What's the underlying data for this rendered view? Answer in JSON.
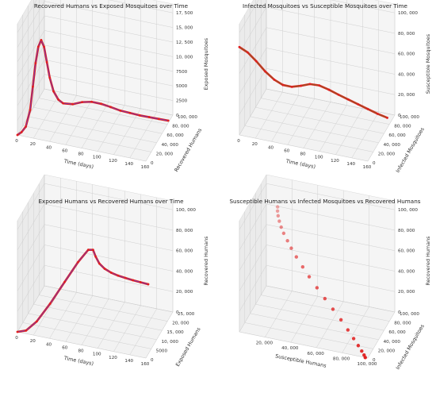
{
  "chart_data": [
    {
      "type": "line3d",
      "title": "Recovered Humans vs Exposed Mosquitoes over Time",
      "xlabel": "Time (days)",
      "ylabel": "Recovered Humans",
      "zlabel": "Exposed Mosquitoes",
      "xticks": [
        "0",
        "20",
        "40",
        "60",
        "80",
        "100",
        "120",
        "140",
        "160"
      ],
      "yticks": [
        "0",
        "20, 000",
        "40, 000",
        "60, 000",
        "80, 000",
        "100, 000"
      ],
      "zticks": [
        "0",
        "2500",
        "5000",
        "7500",
        "10, 000",
        "12, 500",
        "15, 000",
        "17, 500"
      ],
      "xlim": [
        0,
        160
      ],
      "ylim": [
        0,
        100000
      ],
      "zlim": [
        0,
        17500
      ],
      "series": [
        {
          "style": "red-markers-over-purple-line",
          "points": [
            [
              0,
              0,
              0
            ],
            [
              5,
              400,
              600
            ],
            [
              10,
              1200,
              1600
            ],
            [
              15,
              2500,
              4500
            ],
            [
              18,
              3500,
              8500
            ],
            [
              21,
              4600,
              12500
            ],
            [
              24,
              6000,
              15300
            ],
            [
              27,
              7600,
              16400
            ],
            [
              30,
              9300,
              15200
            ],
            [
              33,
              11000,
              12500
            ],
            [
              36,
              12700,
              9800
            ],
            [
              40,
              15000,
              7400
            ],
            [
              45,
              17800,
              5900
            ],
            [
              50,
              20500,
              5200
            ],
            [
              60,
              26000,
              4900
            ],
            [
              70,
              31500,
              5100
            ],
            [
              80,
              37000,
              5000
            ],
            [
              90,
              42500,
              4500
            ],
            [
              100,
              48000,
              3800
            ],
            [
              110,
              54000,
              3000
            ],
            [
              120,
              60000,
              2400
            ],
            [
              130,
              66000,
              1800
            ],
            [
              140,
              72000,
              1300
            ],
            [
              150,
              78000,
              800
            ],
            [
              160,
              83000,
              400
            ]
          ]
        }
      ],
      "grid": true
    },
    {
      "type": "line3d",
      "title": "Infected Mosquitoes vs Susceptible Mosquitoes over Time",
      "xlabel": "Time (days)",
      "ylabel": "Infected Mosquitoes",
      "zlabel": "Susceptible Mosquitoes",
      "xticks": [
        "0",
        "20",
        "40",
        "60",
        "80",
        "100",
        "120",
        "140",
        "160"
      ],
      "yticks": [
        "0",
        "20, 000",
        "40, 000",
        "60, 000",
        "80, 000",
        "100, 000"
      ],
      "zticks": [
        "0",
        "20, 000",
        "40, 000",
        "60, 000",
        "80, 000",
        "100, 000"
      ],
      "xlim": [
        0,
        160
      ],
      "ylim": [
        0,
        100000
      ],
      "zlim": [
        0,
        100000
      ],
      "series": [
        {
          "style": "red-markers-over-olive-line",
          "points": [
            [
              0,
              0,
              86000
            ],
            [
              10,
              800,
              82000
            ],
            [
              20,
              3000,
              74000
            ],
            [
              30,
              6500,
              64000
            ],
            [
              40,
              10000,
              56000
            ],
            [
              50,
              13000,
              51000
            ],
            [
              60,
              16000,
              49500
            ],
            [
              70,
              19500,
              50500
            ],
            [
              80,
              23500,
              52000
            ],
            [
              90,
              28500,
              50000
            ],
            [
              100,
              34000,
              45000
            ],
            [
              110,
              40000,
              39000
            ],
            [
              120,
              46500,
              33000
            ],
            [
              130,
              53000,
              27000
            ],
            [
              140,
              59500,
              21000
            ],
            [
              150,
              66000,
              15000
            ],
            [
              160,
              72000,
              10000
            ]
          ]
        }
      ],
      "grid": true
    },
    {
      "type": "line3d",
      "title": "Exposed Humans vs Recovered Humans over Time",
      "xlabel": "Time (days)",
      "ylabel": "Exposed Humans",
      "zlabel": "Recovered Humans",
      "xticks": [
        "0",
        "20",
        "40",
        "60",
        "80",
        "100",
        "120",
        "140",
        "160"
      ],
      "yticks": [
        "0",
        "5000",
        "10, 000",
        "15, 000",
        "20, 000",
        "25, 000"
      ],
      "zticks": [
        "0",
        "20, 000",
        "40, 000",
        "60, 000",
        "80, 000",
        "100, 000"
      ],
      "xlim": [
        0,
        160
      ],
      "ylim": [
        0,
        25000
      ],
      "zlim": [
        0,
        100000
      ],
      "series": [
        {
          "style": "red-markers-over-purple-line",
          "points": [
            [
              0,
              0,
              0
            ],
            [
              10,
              500,
              2000
            ],
            [
              20,
              3000,
              8000
            ],
            [
              30,
              8000,
              18000
            ],
            [
              40,
              14000,
              30000
            ],
            [
              50,
              19000,
              42000
            ],
            [
              60,
              21000,
              52000
            ],
            [
              70,
              18000,
              59000
            ],
            [
              80,
              13000,
              63000
            ],
            [
              90,
              9000,
              65000
            ],
            [
              100,
              6500,
              66000
            ],
            [
              110,
              5000,
              66500
            ],
            [
              120,
              4000,
              67000
            ],
            [
              130,
              3400,
              67400
            ],
            [
              140,
              2900,
              67700
            ],
            [
              150,
              2500,
              68000
            ],
            [
              160,
              2200,
              68200
            ]
          ]
        }
      ],
      "grid": true
    },
    {
      "type": "scatter3d",
      "title": "Susceptible Humans vs Infected Mosquitoes vs Recovered Humans",
      "xlabel": "Susceptible Humans",
      "ylabel": "Infected Mosquitoes",
      "zlabel": "Recovered Humans",
      "xticks": [
        "20, 000",
        "40, 000",
        "60, 000",
        "80, 000",
        "100, 000"
      ],
      "yticks": [
        "0",
        "20, 000",
        "40, 000",
        "60, 000",
        "80, 000",
        "100, 000"
      ],
      "zticks": [
        "0",
        "20, 000",
        "40, 000",
        "60, 000",
        "80, 000",
        "100, 000"
      ],
      "xlim": [
        0,
        100000
      ],
      "ylim": [
        0,
        100000
      ],
      "zlim": [
        0,
        100000
      ],
      "series": [
        {
          "style": "red-markers",
          "points": [
            [
              98000,
              0,
              0
            ],
            [
              97000,
              400,
              2000
            ],
            [
              95000,
              1200,
              5000
            ],
            [
              92000,
              2600,
              9000
            ],
            [
              88000,
              4500,
              14000
            ],
            [
              83000,
              7000,
              20000
            ],
            [
              77000,
              10000,
              27000
            ],
            [
              70000,
              13500,
              34000
            ],
            [
              63000,
              17000,
              41000
            ],
            [
              56000,
              21000,
              48000
            ],
            [
              49000,
              25500,
              55000
            ],
            [
              43000,
              30000,
              61000
            ],
            [
              37000,
              35000,
              67000
            ],
            [
              32000,
              40000,
              72000
            ],
            [
              28000,
              45000,
              76000
            ],
            [
              24000,
              50000,
              80000
            ],
            [
              21000,
              55000,
              83000
            ],
            [
              18500,
              60000,
              86000
            ],
            [
              16500,
              65000,
              88500
            ],
            [
              15000,
              70000,
              90500
            ],
            [
              14000,
              75000,
              92000
            ]
          ]
        }
      ],
      "grid": true
    }
  ]
}
